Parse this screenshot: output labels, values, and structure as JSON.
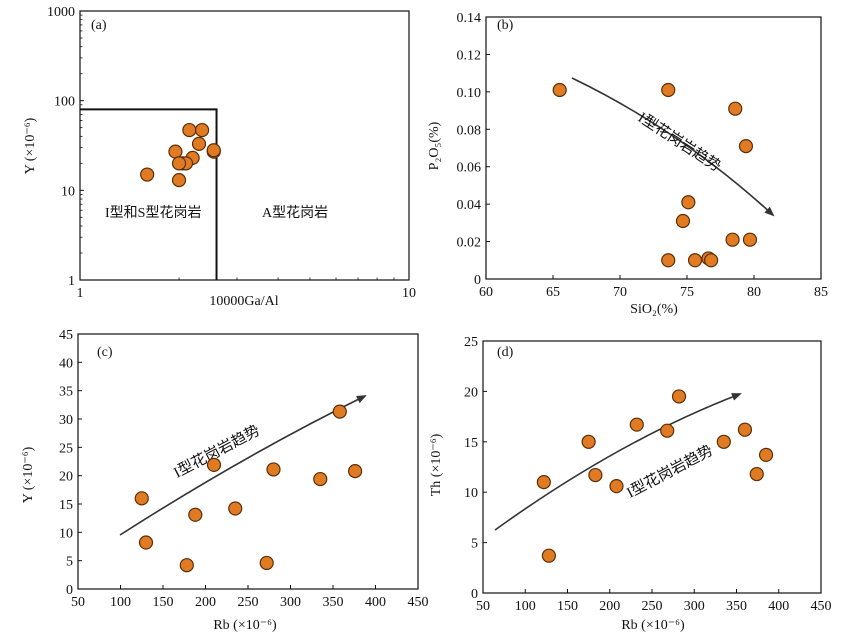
{
  "colors": {
    "point_fill": "#e07b24",
    "point_stroke": "#5a2e08",
    "axis": "#111111",
    "arrow": "#333333"
  },
  "chart_data": [
    {
      "id": "a",
      "type": "scatter",
      "panel_tag": "(a)",
      "xlabel": "10000Ga/Al",
      "ylabel": "Y (×10⁻⁶)",
      "x_scale": "log",
      "y_scale": "log",
      "xlim": [
        1,
        10
      ],
      "ylim": [
        1,
        1000
      ],
      "x_ticks": [
        "1",
        "10"
      ],
      "y_ticks": [
        "1",
        "10",
        "100",
        "1000"
      ],
      "regions": [
        "I型和S型花岗岩",
        "A型花岗岩"
      ],
      "boundary": {
        "x": 2.6,
        "y": 80
      },
      "points": [
        {
          "x": 1.6,
          "y": 15
        },
        {
          "x": 2.55,
          "y": 27
        },
        {
          "x": 2.55,
          "y": 28
        },
        {
          "x": 2.3,
          "y": 33
        },
        {
          "x": 2.15,
          "y": 47
        },
        {
          "x": 2.2,
          "y": 23
        },
        {
          "x": 2.05,
          "y": 20
        },
        {
          "x": 1.95,
          "y": 27
        },
        {
          "x": 2.1,
          "y": 20
        },
        {
          "x": 2.0,
          "y": 20
        },
        {
          "x": 2.0,
          "y": 13
        },
        {
          "x": 2.35,
          "y": 47
        }
      ]
    },
    {
      "id": "b",
      "type": "scatter",
      "panel_tag": "(b)",
      "xlabel": "SiO₂(%)",
      "ylabel": "P₂O₅(%)",
      "xlim": [
        60,
        85
      ],
      "ylim": [
        0,
        0.14
      ],
      "x_ticks": [
        "60",
        "65",
        "70",
        "75",
        "80",
        "85"
      ],
      "y_ticks": [
        "0",
        "0.02",
        "0.04",
        "0.06",
        "0.08",
        "0.10",
        "0.12",
        "0.14"
      ],
      "trend": "I型花岗岩趋势",
      "points": [
        {
          "x": 65.5,
          "y": 0.101
        },
        {
          "x": 73.6,
          "y": 0.101
        },
        {
          "x": 78.6,
          "y": 0.091
        },
        {
          "x": 79.4,
          "y": 0.071
        },
        {
          "x": 75.1,
          "y": 0.041
        },
        {
          "x": 74.7,
          "y": 0.031
        },
        {
          "x": 78.4,
          "y": 0.021
        },
        {
          "x": 79.7,
          "y": 0.021
        },
        {
          "x": 73.6,
          "y": 0.01
        },
        {
          "x": 75.6,
          "y": 0.01
        },
        {
          "x": 76.6,
          "y": 0.011
        },
        {
          "x": 76.8,
          "y": 0.01
        }
      ]
    },
    {
      "id": "c",
      "type": "scatter",
      "panel_tag": "(c)",
      "xlabel": "Rb (×10⁻⁶)",
      "ylabel": "Y (×10⁻⁶)",
      "xlim": [
        50,
        450
      ],
      "ylim": [
        0,
        45
      ],
      "x_ticks": [
        "50",
        "100",
        "150",
        "200",
        "250",
        "300",
        "350",
        "400",
        "450"
      ],
      "y_ticks": [
        "0",
        "5",
        "10",
        "15",
        "20",
        "25",
        "30",
        "35",
        "40",
        "45"
      ],
      "trend": "I型花岗岩趋势",
      "points": [
        {
          "x": 125,
          "y": 16.0
        },
        {
          "x": 130,
          "y": 8.2
        },
        {
          "x": 178,
          "y": 4.2
        },
        {
          "x": 188,
          "y": 13.1
        },
        {
          "x": 210,
          "y": 21.9
        },
        {
          "x": 235,
          "y": 14.2
        },
        {
          "x": 272,
          "y": 4.6
        },
        {
          "x": 280,
          "y": 21.1
        },
        {
          "x": 335,
          "y": 19.4
        },
        {
          "x": 358,
          "y": 31.3
        },
        {
          "x": 376,
          "y": 20.8
        }
      ]
    },
    {
      "id": "d",
      "type": "scatter",
      "panel_tag": "(d)",
      "xlabel": "Rb (×10⁻⁶)",
      "ylabel": "Th (×10⁻⁶)",
      "xlim": [
        50,
        450
      ],
      "ylim": [
        0,
        25
      ],
      "x_ticks": [
        "50",
        "100",
        "150",
        "200",
        "250",
        "300",
        "350",
        "400",
        "450"
      ],
      "y_ticks": [
        "0",
        "5",
        "10",
        "15",
        "20",
        "25"
      ],
      "trend": "I型花岗岩趋势",
      "points": [
        {
          "x": 122,
          "y": 11.0
        },
        {
          "x": 128,
          "y": 3.7
        },
        {
          "x": 175,
          "y": 15.0
        },
        {
          "x": 183,
          "y": 11.7
        },
        {
          "x": 208,
          "y": 10.6
        },
        {
          "x": 232,
          "y": 16.7
        },
        {
          "x": 268,
          "y": 16.1
        },
        {
          "x": 282,
          "y": 19.5
        },
        {
          "x": 335,
          "y": 15.0
        },
        {
          "x": 360,
          "y": 16.2
        },
        {
          "x": 374,
          "y": 11.8
        },
        {
          "x": 385,
          "y": 13.7
        }
      ]
    }
  ]
}
